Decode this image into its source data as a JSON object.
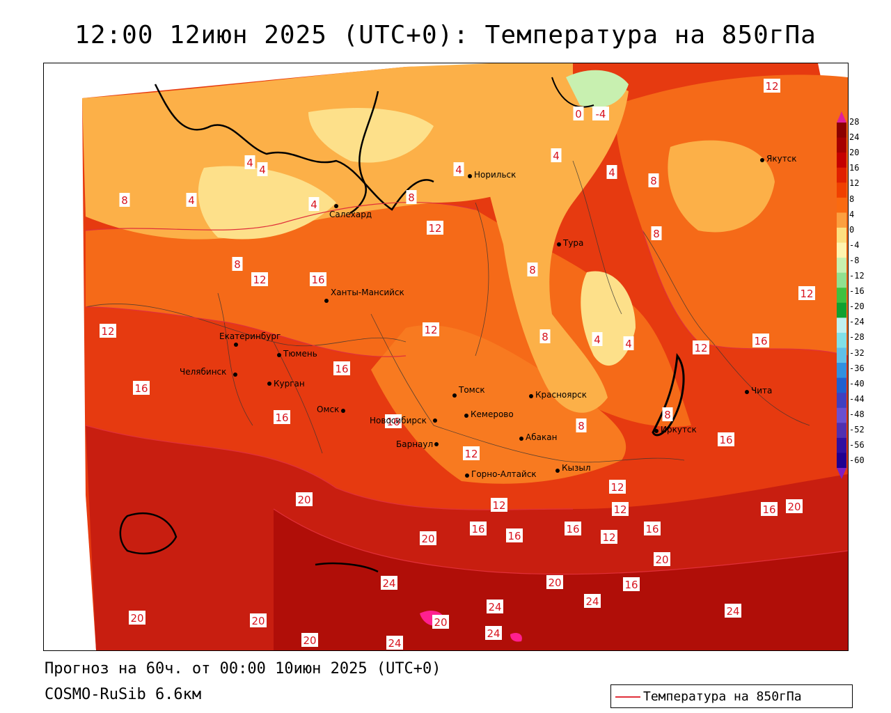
{
  "title": "12:00 12июн 2025 (UTC+0): Температура на 850гПа",
  "footer": {
    "forecast": "Прогноз на 60ч. от 00:00 10июн 2025 (UTC+0)",
    "model": "COSMO-RuSib 6.6км"
  },
  "legend": {
    "label": "Температура на 850гПа",
    "line_color": "#e0303a"
  },
  "colorbar": {
    "ticks": [
      "28",
      "24",
      "20",
      "16",
      "12",
      "8",
      "4",
      "0",
      "-4",
      "-8",
      "-12",
      "-16",
      "-20",
      "-24",
      "-28",
      "-32",
      "-36",
      "-40",
      "-44",
      "-48",
      "-52",
      "-56",
      "-60"
    ],
    "colors": [
      "#8b0000",
      "#a50000",
      "#c40000",
      "#e02000",
      "#f04000",
      "#fa6a10",
      "#fca040",
      "#fde080",
      "#fff4b0",
      "#c8f0b0",
      "#90e090",
      "#40c040",
      "#10a030",
      "#c0f0f0",
      "#80e0e8",
      "#60c0e8",
      "#3090e0",
      "#2060d0",
      "#4040c0",
      "#6a50d0",
      "#5030b0",
      "#3010a0",
      "#200090"
    ]
  },
  "cities": [
    {
      "name": "Норильск"
    },
    {
      "name": "Салехард"
    },
    {
      "name": "Якутск"
    },
    {
      "name": "Тура"
    },
    {
      "name": "Ханты-Мансийск"
    },
    {
      "name": "Екатеринбург"
    },
    {
      "name": "Тюмень"
    },
    {
      "name": "Челябинск"
    },
    {
      "name": "Курган"
    },
    {
      "name": "Омск"
    },
    {
      "name": "Новосибирск"
    },
    {
      "name": "Томск"
    },
    {
      "name": "Кемерово"
    },
    {
      "name": "Красноярск"
    },
    {
      "name": "Барнаул"
    },
    {
      "name": "Абакан"
    },
    {
      "name": "Иркутск"
    },
    {
      "name": "Чита"
    },
    {
      "name": "Горно-Алтайск"
    },
    {
      "name": "Кызыл"
    }
  ],
  "contour_labels": [
    "-4",
    "0",
    "4",
    "4",
    "4",
    "4",
    "4",
    "4",
    "4",
    "4",
    "4",
    "8",
    "8",
    "8",
    "8",
    "8",
    "8",
    "8",
    "8",
    "8",
    "12",
    "12",
    "12",
    "12",
    "12",
    "12",
    "12",
    "12",
    "12",
    "12",
    "12",
    "12",
    "16",
    "16",
    "16",
    "16",
    "16",
    "16",
    "16",
    "16",
    "16",
    "16",
    "16",
    "16",
    "16",
    "20",
    "20",
    "20",
    "20",
    "20",
    "20",
    "20",
    "20",
    "20",
    "24",
    "24",
    "24",
    "24",
    "24",
    "24"
  ]
}
